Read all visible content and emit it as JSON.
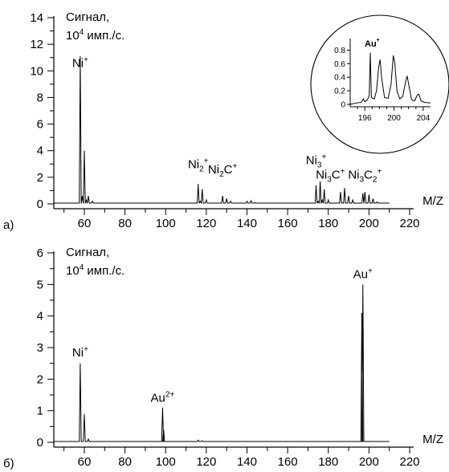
{
  "chart_data": [
    {
      "type": "line",
      "panel_label": "а)",
      "ylabel_line1": "Сигнал,",
      "ylabel_base": "10",
      "ylabel_exp": "4",
      "ylabel_unit": " имп./с.",
      "xlabel": "M/Z",
      "xlim": [
        45,
        220
      ],
      "ylim": [
        0,
        14
      ],
      "x_ticks": [
        60,
        80,
        100,
        120,
        140,
        160,
        180,
        200,
        220
      ],
      "y_ticks": [
        0,
        2,
        4,
        6,
        8,
        10,
        12,
        14
      ],
      "peaks": [
        [
          58,
          11.1
        ],
        [
          59,
          0.6
        ],
        [
          60,
          4.0
        ],
        [
          61,
          0.3
        ],
        [
          62,
          0.6
        ],
        [
          64,
          0.2
        ],
        [
          116,
          1.5
        ],
        [
          117,
          0.2
        ],
        [
          118,
          1.1
        ],
        [
          120,
          0.3
        ],
        [
          128,
          0.6
        ],
        [
          130,
          0.4
        ],
        [
          132,
          0.2
        ],
        [
          140,
          0.2
        ],
        [
          142,
          0.25
        ],
        [
          144,
          0.1
        ],
        [
          174,
          1.4
        ],
        [
          175,
          0.2
        ],
        [
          176,
          1.7
        ],
        [
          177,
          0.3
        ],
        [
          178,
          1.1
        ],
        [
          180,
          0.3
        ],
        [
          186,
          0.9
        ],
        [
          188,
          1.2
        ],
        [
          190,
          0.6
        ],
        [
          192,
          0.3
        ],
        [
          197,
          0.8
        ],
        [
          198,
          0.9
        ],
        [
          200,
          0.7
        ],
        [
          202,
          0.4
        ],
        [
          204,
          0.15
        ]
      ],
      "annotations": [
        {
          "base": "Ni",
          "sub": "",
          "sup": "+",
          "tail": "",
          "tail_sub": "",
          "tail_sup": "",
          "x": 58,
          "y": 10.3
        },
        {
          "base": "Ni",
          "sub": "2",
          "sup": "+",
          "tail": "",
          "tail_sub": "",
          "tail_sup": "",
          "x": 116,
          "y": 2.7
        },
        {
          "base": "Ni",
          "sub": "2",
          "sup": "",
          "tail": "C",
          "tail_sub": "",
          "tail_sup": "+",
          "x": 128,
          "y": 2.3
        },
        {
          "base": "Ni",
          "sub": "3",
          "sup": "+",
          "tail": "",
          "tail_sub": "",
          "tail_sup": "",
          "x": 174,
          "y": 3.0
        },
        {
          "base": "Ni",
          "sub": "3",
          "sup": "",
          "tail": "C",
          "tail_sub": "",
          "tail_sup": "+",
          "x": 181,
          "y": 1.9
        },
        {
          "base": "Ni",
          "sub": "3",
          "sup": "",
          "tail": "C",
          "tail_sub": "2",
          "tail_sup": "+",
          "x": 198,
          "y": 1.9
        }
      ],
      "inset": {
        "ion_label": "Au",
        "ion_sup": "+",
        "xlim": [
          194,
          205
        ],
        "ylim": [
          0,
          0.9
        ],
        "x_ticks": [
          196,
          200,
          204
        ],
        "y_ticks": [
          0,
          0.2,
          0.4,
          0.6,
          0.8
        ],
        "y_tick_labels": [
          "0",
          "0.2",
          "0.4",
          "0.6",
          "0.8"
        ],
        "line": [
          [
            194,
            0
          ],
          [
            194.8,
            0.02
          ],
          [
            195.5,
            0.03
          ],
          [
            195.8,
            0.08
          ],
          [
            196.0,
            0.04
          ],
          [
            196.3,
            0.06
          ],
          [
            196.6,
            0.12
          ],
          [
            196.75,
            0.76
          ],
          [
            196.9,
            0.1
          ],
          [
            197.3,
            0.08
          ],
          [
            197.6,
            0.2
          ],
          [
            197.9,
            0.55
          ],
          [
            198.1,
            0.66
          ],
          [
            198.3,
            0.4
          ],
          [
            198.7,
            0.1
          ],
          [
            199.2,
            0.09
          ],
          [
            199.6,
            0.3
          ],
          [
            199.9,
            0.72
          ],
          [
            200.1,
            0.62
          ],
          [
            200.4,
            0.2
          ],
          [
            200.8,
            0.08
          ],
          [
            201.2,
            0.12
          ],
          [
            201.6,
            0.34
          ],
          [
            201.8,
            0.42
          ],
          [
            202.0,
            0.3
          ],
          [
            202.4,
            0.07
          ],
          [
            202.8,
            0.05
          ],
          [
            203.2,
            0.14
          ],
          [
            203.4,
            0.15
          ],
          [
            203.7,
            0.05
          ],
          [
            204.2,
            0.03
          ],
          [
            205,
            0.02
          ]
        ]
      }
    },
    {
      "type": "line",
      "panel_label": "б)",
      "ylabel_line1": "Сигнал,",
      "ylabel_base": "10",
      "ylabel_exp": "4",
      "ylabel_unit": " имп./с.",
      "xlabel": "M/Z",
      "xlim": [
        45,
        220
      ],
      "ylim": [
        0,
        6
      ],
      "x_ticks": [
        60,
        80,
        100,
        120,
        140,
        160,
        180,
        200,
        220
      ],
      "y_ticks": [
        0,
        1,
        2,
        3,
        4,
        5,
        6
      ],
      "peaks": [
        [
          58,
          2.5
        ],
        [
          60,
          0.9
        ],
        [
          62,
          0.1
        ],
        [
          98.5,
          1.1
        ],
        [
          99,
          0.4
        ],
        [
          116,
          0.07
        ],
        [
          118,
          0.05
        ],
        [
          196.5,
          4.1
        ],
        [
          197,
          5.0
        ]
      ],
      "annotations": [
        {
          "base": "Ni",
          "sub": "",
          "sup": "+",
          "tail": "",
          "tail_sub": "",
          "tail_sup": "",
          "x": 58,
          "y": 2.72
        },
        {
          "base": "Au",
          "sub": "",
          "sup": "2+",
          "tail": "",
          "tail_sub": "",
          "tail_sup": "",
          "x": 98.5,
          "y": 1.28
        },
        {
          "base": "Au",
          "sub": "",
          "sup": "+",
          "tail": "",
          "tail_sub": "",
          "tail_sup": "",
          "x": 197,
          "y": 5.2
        }
      ]
    }
  ]
}
